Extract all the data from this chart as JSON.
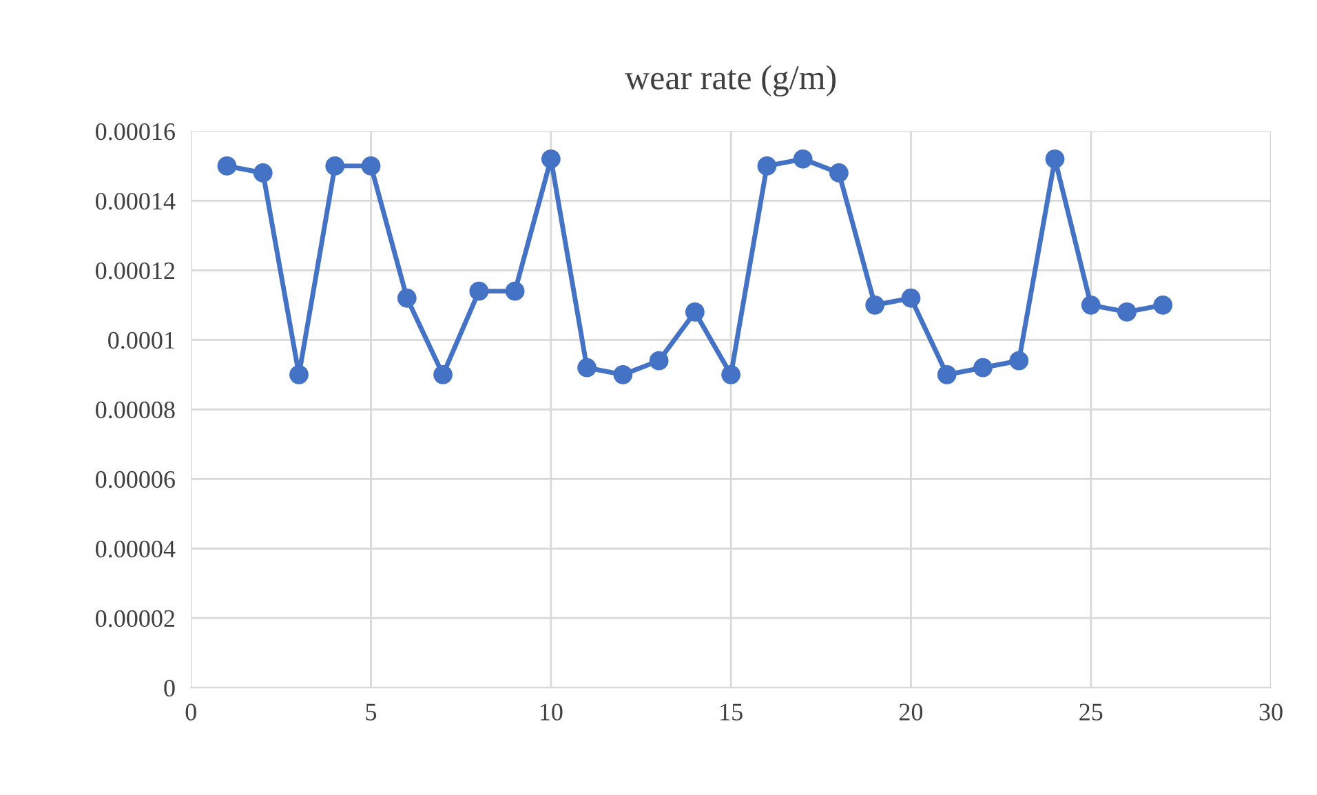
{
  "chart_data": {
    "type": "line",
    "title": "wear rate (g/m)",
    "x": [
      1,
      2,
      3,
      4,
      5,
      6,
      7,
      8,
      9,
      10,
      11,
      12,
      13,
      14,
      15,
      16,
      17,
      18,
      19,
      20,
      21,
      22,
      23,
      24,
      25,
      26,
      27
    ],
    "series": [
      {
        "color": "#4472c4",
        "values": [
          0.00015,
          0.000148,
          9e-05,
          0.00015,
          0.00015,
          0.000112,
          9e-05,
          0.000114,
          0.000114,
          0.000152,
          9.2e-05,
          9e-05,
          9.4e-05,
          0.000108,
          9e-05,
          0.00015,
          0.000152,
          0.000148,
          0.00011,
          0.000112,
          9e-05,
          9.2e-05,
          9.4e-05,
          0.000152,
          0.00011,
          0.000108,
          0.00011
        ]
      }
    ],
    "xlim": [
      0,
      30
    ],
    "xticks": [
      0,
      5,
      10,
      15,
      20,
      25,
      30
    ],
    "ylim": [
      0,
      0.00016
    ],
    "yticks": [
      {
        "value": 0,
        "label": "0"
      },
      {
        "value": 2e-05,
        "label": "0.00002"
      },
      {
        "value": 4e-05,
        "label": "0.00004"
      },
      {
        "value": 6e-05,
        "label": "0.00006"
      },
      {
        "value": 8e-05,
        "label": "0.00008"
      },
      {
        "value": 0.0001,
        "label": "0.0001"
      },
      {
        "value": 0.00012,
        "label": "0.00012"
      },
      {
        "value": 0.00014,
        "label": "0.00014"
      },
      {
        "value": 0.00016,
        "label": "0.00016"
      }
    ],
    "grid": true,
    "marker": "circle",
    "line_style": "solid",
    "legend": false
  }
}
